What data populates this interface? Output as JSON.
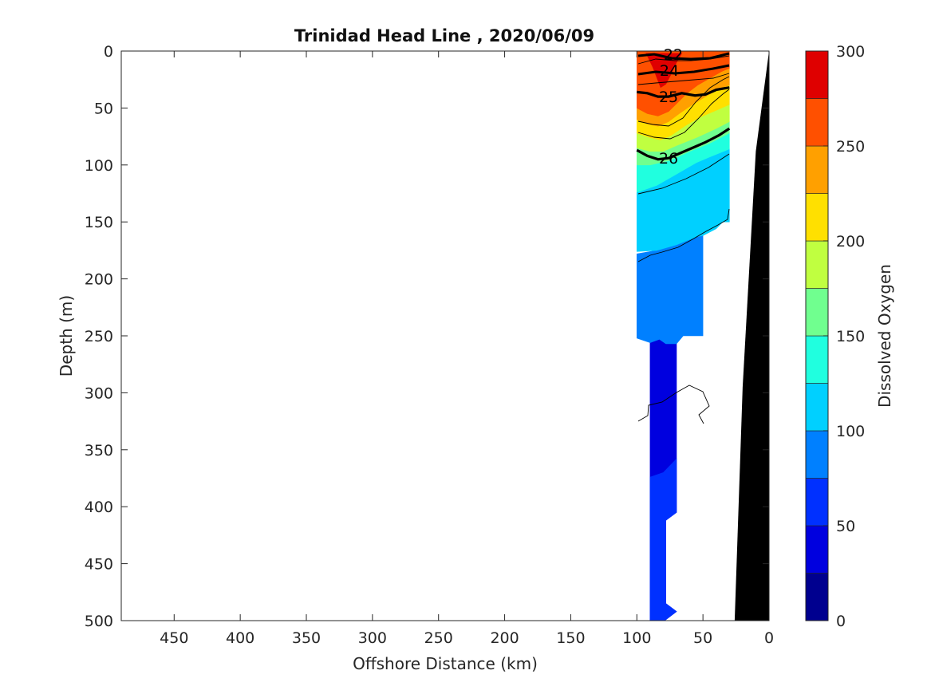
{
  "chart_data": {
    "type": "contourf",
    "title": "Trinidad Head Line , 2020/06/09",
    "xlabel": "Offshore Distance (km)",
    "ylabel": "Depth (m)",
    "xlim": [
      490,
      0
    ],
    "ylim": [
      0,
      500
    ],
    "x_reversed": true,
    "y_reversed": true,
    "x_ticks": [
      450,
      400,
      350,
      300,
      250,
      200,
      150,
      100,
      50,
      0
    ],
    "x_tick_labels": [
      "450",
      "400",
      "350",
      "300",
      "250",
      "200",
      "150",
      "100",
      "50",
      "0"
    ],
    "y_ticks": [
      0,
      50,
      100,
      150,
      200,
      250,
      300,
      350,
      400,
      450,
      500
    ],
    "y_tick_labels": [
      "0",
      "50",
      "100",
      "150",
      "200",
      "250",
      "300",
      "350",
      "400",
      "450",
      "500"
    ],
    "colorbar": {
      "label": "Dissolved Oxygen",
      "range": [
        0,
        300
      ],
      "ticks": [
        0,
        50,
        100,
        150,
        200,
        250,
        300
      ],
      "tick_labels": [
        "0",
        "50",
        "100",
        "150",
        "200",
        "250",
        "300"
      ],
      "levels": [
        0,
        25,
        50,
        75,
        100,
        125,
        150,
        175,
        200,
        225,
        250,
        275,
        300
      ],
      "colors": [
        "#00008f",
        "#0000df",
        "#0030ff",
        "#0080ff",
        "#00d0ff",
        "#20ffdf",
        "#70ff8f",
        "#c0ff40",
        "#ffe000",
        "#ffa000",
        "#ff5000",
        "#df0000"
      ]
    },
    "density_contours": [
      {
        "label": "25",
        "points": [
          [
            100,
            36
          ],
          [
            92,
            37
          ],
          [
            84,
            40
          ],
          [
            76,
            40
          ],
          [
            66,
            37
          ],
          [
            56,
            39
          ],
          [
            48,
            38
          ],
          [
            40,
            34
          ],
          [
            30,
            32
          ]
        ]
      },
      {
        "label": "26",
        "points": [
          [
            100,
            87
          ],
          [
            92,
            92
          ],
          [
            84,
            95
          ],
          [
            76,
            94
          ],
          [
            66,
            89
          ],
          [
            56,
            84
          ],
          [
            48,
            80
          ],
          [
            38,
            74
          ],
          [
            30,
            68
          ]
        ]
      }
    ],
    "upper_contour_labels": [
      "22",
      "24"
    ],
    "color_regions": [
      {
        "level_min": 25,
        "level_max": 50,
        "polygon": [
          [
            90,
            500
          ],
          [
            90,
            256
          ],
          [
            83,
            253
          ],
          [
            78,
            257
          ],
          [
            70,
            257
          ],
          [
            70,
            405
          ],
          [
            78,
            412
          ],
          [
            78,
            485
          ],
          [
            70,
            492
          ],
          [
            79,
            500
          ]
        ]
      },
      {
        "level_min": 50,
        "level_max": 75,
        "polygon": [
          [
            90,
            500
          ],
          [
            90,
            374
          ],
          [
            80,
            370
          ],
          [
            70,
            358
          ],
          [
            70,
            405
          ],
          [
            78,
            412
          ],
          [
            78,
            485
          ],
          [
            70,
            492
          ],
          [
            79,
            500
          ]
        ]
      },
      {
        "level_min": 75,
        "level_max": 100,
        "polygon": [
          [
            100,
            252
          ],
          [
            100,
            178
          ],
          [
            85,
            175
          ],
          [
            70,
            170
          ],
          [
            55,
            163
          ],
          [
            50,
            162
          ],
          [
            50,
            250
          ],
          [
            65,
            250
          ],
          [
            70,
            257
          ],
          [
            78,
            257
          ],
          [
            83,
            253
          ],
          [
            90,
            256
          ]
        ]
      },
      {
        "level_min": 100,
        "level_max": 125,
        "polygon": [
          [
            100,
            176
          ],
          [
            100,
            124
          ],
          [
            85,
            118
          ],
          [
            70,
            108
          ],
          [
            55,
            98
          ],
          [
            45,
            93
          ],
          [
            30,
            86
          ],
          [
            30,
            150
          ],
          [
            35,
            150
          ],
          [
            40,
            156
          ],
          [
            50,
            162
          ],
          [
            55,
            163
          ],
          [
            70,
            170
          ],
          [
            85,
            175
          ]
        ]
      },
      {
        "level_min": 125,
        "level_max": 150,
        "polygon": [
          [
            100,
            124
          ],
          [
            100,
            100
          ],
          [
            90,
            100
          ],
          [
            75,
            96
          ],
          [
            60,
            88
          ],
          [
            45,
            81
          ],
          [
            30,
            72
          ],
          [
            30,
            86
          ],
          [
            45,
            93
          ],
          [
            55,
            98
          ],
          [
            70,
            108
          ],
          [
            85,
            118
          ]
        ]
      },
      {
        "level_min": 150,
        "level_max": 175,
        "polygon": [
          [
            100,
            100
          ],
          [
            100,
            85
          ],
          [
            90,
            88
          ],
          [
            80,
            88
          ],
          [
            70,
            83
          ],
          [
            55,
            76
          ],
          [
            40,
            68
          ],
          [
            30,
            62
          ],
          [
            30,
            72
          ],
          [
            45,
            81
          ],
          [
            60,
            88
          ],
          [
            75,
            96
          ],
          [
            90,
            100
          ]
        ]
      },
      {
        "level_min": 175,
        "level_max": 200,
        "polygon": [
          [
            100,
            85
          ],
          [
            100,
            72
          ],
          [
            90,
            76
          ],
          [
            82,
            78
          ],
          [
            74,
            74
          ],
          [
            64,
            66
          ],
          [
            52,
            58
          ],
          [
            40,
            52
          ],
          [
            30,
            47
          ],
          [
            30,
            62
          ],
          [
            40,
            68
          ],
          [
            55,
            76
          ],
          [
            70,
            83
          ],
          [
            80,
            88
          ],
          [
            90,
            88
          ]
        ]
      },
      {
        "level_min": 200,
        "level_max": 225,
        "polygon": [
          [
            100,
            72
          ],
          [
            100,
            60
          ],
          [
            92,
            64
          ],
          [
            84,
            66
          ],
          [
            76,
            62
          ],
          [
            68,
            55
          ],
          [
            58,
            47
          ],
          [
            48,
            40
          ],
          [
            38,
            33
          ],
          [
            30,
            30
          ],
          [
            30,
            47
          ],
          [
            40,
            52
          ],
          [
            52,
            58
          ],
          [
            64,
            66
          ],
          [
            74,
            74
          ],
          [
            82,
            78
          ],
          [
            90,
            76
          ]
        ]
      },
      {
        "level_min": 225,
        "level_max": 250,
        "polygon": [
          [
            100,
            60
          ],
          [
            100,
            50
          ],
          [
            92,
            55
          ],
          [
            84,
            57
          ],
          [
            76,
            53
          ],
          [
            69,
            45
          ],
          [
            62,
            37
          ],
          [
            54,
            30
          ],
          [
            45,
            24
          ],
          [
            36,
            18
          ],
          [
            30,
            15
          ],
          [
            30,
            30
          ],
          [
            38,
            33
          ],
          [
            48,
            40
          ],
          [
            58,
            47
          ],
          [
            68,
            55
          ],
          [
            76,
            62
          ],
          [
            84,
            66
          ],
          [
            92,
            64
          ]
        ]
      },
      {
        "level_min": 250,
        "level_max": 275,
        "polygon": [
          [
            100,
            50
          ],
          [
            100,
            0
          ],
          [
            30,
            0
          ],
          [
            30,
            15
          ],
          [
            36,
            18
          ],
          [
            45,
            24
          ],
          [
            54,
            30
          ],
          [
            62,
            37
          ],
          [
            69,
            45
          ],
          [
            76,
            53
          ],
          [
            84,
            57
          ],
          [
            92,
            55
          ]
        ]
      },
      {
        "level_min": 275,
        "level_max": 300,
        "polygon": [
          [
            93,
            2
          ],
          [
            88,
            14
          ],
          [
            84,
            26
          ],
          [
            82,
            32
          ],
          [
            78,
            29
          ],
          [
            74,
            20
          ],
          [
            70,
            10
          ],
          [
            66,
            2
          ]
        ]
      }
    ],
    "bathymetry": {
      "color": "#000000",
      "polygon": [
        [
          0,
          0
        ],
        [
          10,
          88
        ],
        [
          20,
          295
        ],
        [
          26,
          500
        ],
        [
          0,
          500
        ]
      ]
    }
  }
}
